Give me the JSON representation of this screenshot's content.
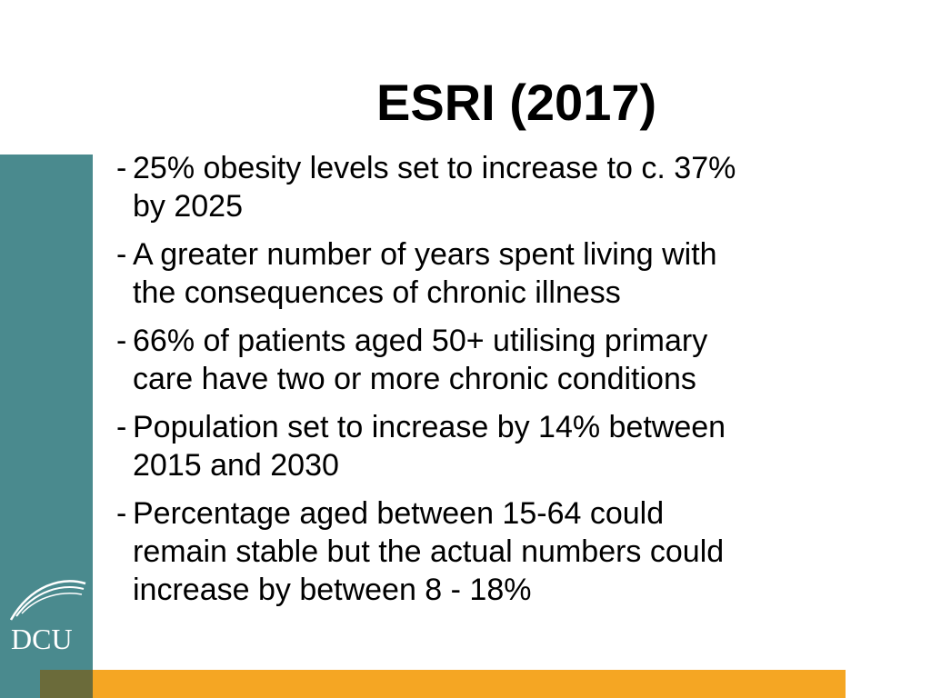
{
  "slide": {
    "title": "ESRI (2017)",
    "bullet_marker": "-",
    "bullets": [
      "25% obesity levels set to increase to c. 37%\nby 2025",
      "A greater number of years spent living with\nthe consequences of chronic illness",
      "66% of patients aged 50+ utilising primary\ncare have two or more chronic conditions",
      "Population set to increase by 14% between\n2015 and 2030",
      "Percentage aged between 15-64 could\nremain stable but the actual numbers could\nincrease by between 8 - 18%"
    ]
  },
  "branding": {
    "logo_text": "DCU",
    "sidebar_color": "#4a8a8e",
    "accent_bar_color": "#f5a623",
    "corner_color": "#6b6b3a"
  }
}
